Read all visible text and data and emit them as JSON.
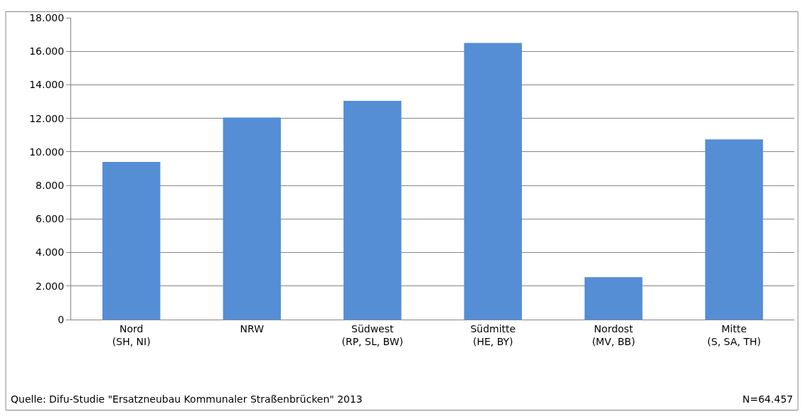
{
  "chart_data": {
    "type": "bar",
    "categories": [
      "Nord\n(SH, NI)",
      "NRW",
      "Südwest\n(RP, SL, BW)",
      "Südmitte\n(HE, BY)",
      "Nordost\n(MV, BB)",
      "Mitte\n(S, SA, TH)"
    ],
    "values": [
      9400,
      12050,
      13050,
      16500,
      2530,
      10750
    ],
    "color": "#558ed5",
    "ylim": [
      0,
      18000
    ],
    "yticks": [
      {
        "value": 0,
        "label": "0"
      },
      {
        "value": 2000,
        "label": "2.000"
      },
      {
        "value": 4000,
        "label": "4.000"
      },
      {
        "value": 6000,
        "label": "6.000"
      },
      {
        "value": 8000,
        "label": "8.000"
      },
      {
        "value": 10000,
        "label": "10.000"
      },
      {
        "value": 12000,
        "label": "12.000"
      },
      {
        "value": 14000,
        "label": "14.000"
      },
      {
        "value": 16000,
        "label": "16.000"
      },
      {
        "value": 18000,
        "label": "18.000"
      }
    ],
    "grid": "y",
    "annotations": [
      "Quelle: Difu-Studie \"Ersatzneubau Kommunaler Straßenbrücken\" 2013",
      "N=64.457"
    ]
  }
}
